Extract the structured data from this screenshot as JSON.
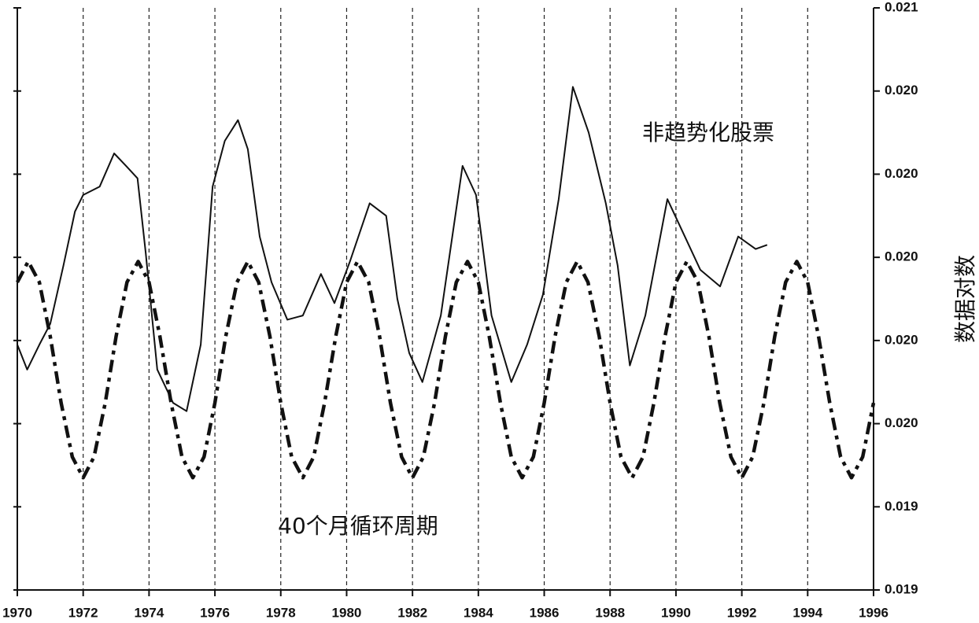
{
  "chart_data": {
    "type": "line",
    "y_label": "数据对数",
    "xlim": [
      1970,
      1996
    ],
    "xticks": [
      1970,
      1972,
      1974,
      1976,
      1978,
      1980,
      1982,
      1984,
      1986,
      1988,
      1990,
      1992,
      1994,
      1996
    ],
    "ylim": [
      0.0192,
      0.0206
    ],
    "yticks": [
      {
        "value": 0.0192,
        "label": "0.019"
      },
      {
        "value": 0.0194,
        "label": "0.019"
      },
      {
        "value": 0.0196,
        "label": "0.020"
      },
      {
        "value": 0.0198,
        "label": "0.020"
      },
      {
        "value": 0.02,
        "label": "0.020"
      },
      {
        "value": 0.0202,
        "label": "0.020"
      },
      {
        "value": 0.0204,
        "label": "0.020"
      },
      {
        "value": 0.0206,
        "label": "0.021"
      }
    ],
    "grid": true,
    "series": [
      {
        "name": "非趋势化股票",
        "color": "#111111",
        "style": "solid",
        "x": [
          1970.0,
          1970.3,
          1970.67,
          1971.0,
          1971.4,
          1971.75,
          1972.0,
          1972.5,
          1972.94,
          1973.3,
          1973.65,
          1973.9,
          1974.25,
          1974.73,
          1975.14,
          1975.57,
          1975.93,
          1976.3,
          1976.7,
          1977.0,
          1977.36,
          1977.72,
          1978.2,
          1978.67,
          1979.22,
          1979.63,
          1980.1,
          1980.7,
          1981.2,
          1981.54,
          1981.9,
          1982.3,
          1982.86,
          1983.52,
          1983.93,
          1984.4,
          1985.0,
          1985.48,
          1985.96,
          1986.44,
          1986.87,
          1987.35,
          1987.87,
          1988.23,
          1988.6,
          1989.07,
          1989.74,
          1990.27,
          1990.74,
          1991.34,
          1991.89,
          1992.42,
          1992.77
        ],
        "values": [
          0.01979,
          0.01973,
          0.01979,
          0.01984,
          0.01998,
          0.02011,
          0.02015,
          0.02017,
          0.02025,
          0.02022,
          0.02019,
          0.02001,
          0.01973,
          0.01965,
          0.01963,
          0.01979,
          0.02017,
          0.02028,
          0.02033,
          0.02026,
          0.02005,
          0.01994,
          0.01985,
          0.01986,
          0.01996,
          0.01989,
          0.01999,
          0.02013,
          0.0201,
          0.0199,
          0.01977,
          0.0197,
          0.01986,
          0.02022,
          0.02015,
          0.01986,
          0.0197,
          0.01979,
          0.01991,
          0.02014,
          0.02041,
          0.0203,
          0.02013,
          0.01998,
          0.01974,
          0.01986,
          0.02014,
          0.02005,
          0.01997,
          0.01993,
          0.02005,
          0.02002,
          0.02003
        ]
      },
      {
        "name": "40个月循环周期",
        "color": "#111111",
        "style": "dashdot",
        "x": [
          1970,
          1970.33,
          1970.67,
          1971,
          1971.33,
          1971.67,
          1972,
          1972.33,
          1972.67,
          1973,
          1973.33,
          1973.67,
          1974,
          1974.33,
          1974.67,
          1975,
          1975.33,
          1975.67,
          1976,
          1976.33,
          1976.67,
          1977,
          1977.33,
          1977.67,
          1978,
          1978.33,
          1978.67,
          1979,
          1979.33,
          1979.67,
          1980,
          1980.33,
          1980.67,
          1981,
          1981.33,
          1981.67,
          1982,
          1982.33,
          1982.67,
          1983,
          1983.33,
          1983.67,
          1984,
          1984.33,
          1984.67,
          1985,
          1985.33,
          1985.67,
          1986,
          1986.33,
          1986.67,
          1987,
          1987.33,
          1987.67,
          1988,
          1988.33,
          1988.67,
          1989,
          1989.33,
          1989.67,
          1990,
          1990.33,
          1990.67,
          1991,
          1991.33,
          1991.67,
          1992,
          1992.33,
          1992.67,
          1993,
          1993.33,
          1993.67,
          1994,
          1994.33,
          1994.67,
          1995,
          1995.33,
          1995.67,
          1996
        ],
        "values": [
          0.01994,
          0.01999,
          0.01994,
          0.01981,
          0.01965,
          0.01952,
          0.01947,
          0.01952,
          0.01965,
          0.01981,
          0.01994,
          0.01999,
          0.01994,
          0.01981,
          0.01965,
          0.01952,
          0.01947,
          0.01952,
          0.01965,
          0.01981,
          0.01994,
          0.01999,
          0.01994,
          0.01981,
          0.01965,
          0.01952,
          0.01947,
          0.01952,
          0.01965,
          0.01981,
          0.01994,
          0.01999,
          0.01994,
          0.01981,
          0.01965,
          0.01952,
          0.01947,
          0.01952,
          0.01965,
          0.01981,
          0.01994,
          0.01999,
          0.01994,
          0.01981,
          0.01965,
          0.01952,
          0.01947,
          0.01952,
          0.01965,
          0.01981,
          0.01994,
          0.01999,
          0.01994,
          0.01981,
          0.01965,
          0.01952,
          0.01947,
          0.01952,
          0.01965,
          0.01981,
          0.01994,
          0.01999,
          0.01994,
          0.01981,
          0.01965,
          0.01952,
          0.01947,
          0.01952,
          0.01965,
          0.01981,
          0.01994,
          0.01999,
          0.01994,
          0.01981,
          0.01965,
          0.01952,
          0.01947,
          0.01952,
          0.01965
        ]
      }
    ]
  }
}
